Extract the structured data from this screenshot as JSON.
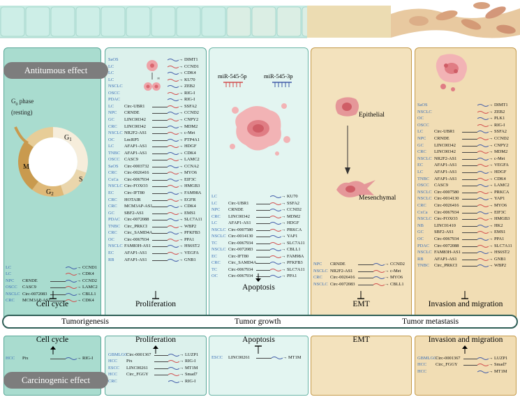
{
  "labels": {
    "antitumor": "Antitumous effect",
    "carcinogenic": "Carcinogenic effect"
  },
  "band": {
    "tumorigenesis": "Tumorigenesis",
    "growth": "Tumor growth",
    "metastasis": "Tumor metastasis"
  },
  "cell_cycle_diagram": {
    "g0_label": "G",
    "g0_sub": "0",
    "g0_rest": " phase",
    "g0_resting": "(resting)",
    "g1": "G",
    "g1_sub": "1",
    "s": "S",
    "g2": "G",
    "g2_sub": "2",
    "m": "M"
  },
  "emt_diagram": {
    "epithelial": "Epithelial",
    "mesenchymal": "Mesenchymal"
  },
  "apoptosis_diagram": {
    "mir1": "miR-545-5p",
    "mir2": "miR-545-3p"
  },
  "panel_titles": {
    "cell_cycle": "Cell cycle",
    "proliferation": "Proliferation",
    "apoptosis": "Apoptosis",
    "emt": "EMT",
    "invasion": "Invasion and migration"
  },
  "colors": {
    "panel1": "#a9dccf",
    "panel2": "#dcf1ec",
    "panel3": "#e3f5f1",
    "panel4": "#f3e2bd",
    "panel5": "#f1ddb4",
    "tumor_text": "#3b6fb6",
    "mir_red": "#d14b4b",
    "mir_blue": "#3f5aa8"
  },
  "anti_cell_cycle": [
    [
      "LC",
      "",
      "CCND1"
    ],
    [
      "LC",
      "",
      "CDK4"
    ],
    [
      "NPC",
      "CRNDE",
      "CCND2"
    ],
    [
      "OSCC",
      "CASC9",
      "LAMC2"
    ],
    [
      "NSCLC",
      "Circ-0072083",
      "CBLL1"
    ],
    [
      "CRC",
      "MCM3AP-AS1",
      "CDK4"
    ]
  ],
  "anti_proliferation": [
    [
      "SaOS",
      "",
      "DIMT1"
    ],
    [
      "LC",
      "",
      "CCND1"
    ],
    [
      "LC",
      "",
      "CDK4"
    ],
    [
      "LC",
      "",
      "KU70"
    ],
    [
      "NSCLC",
      "",
      "ZEB2"
    ],
    [
      "OSCC",
      "",
      "RIG-I"
    ],
    [
      "PDAC",
      "",
      "RIG-I"
    ],
    [
      "LC",
      "Circ-UBR1",
      "SSFA2"
    ],
    [
      "NPC",
      "CRNDE",
      "CCND2"
    ],
    [
      "GC",
      "LINC00342",
      "CNPY2"
    ],
    [
      "CRC",
      "LINC00342",
      "MDM2"
    ],
    [
      "NSCLC",
      "NR2F2-AS1",
      "c-Met"
    ],
    [
      "OC",
      "LncRP5",
      "PTP4A1"
    ],
    [
      "LC",
      "AFAP1-AS1",
      "HDGF"
    ],
    [
      "TNBC",
      "AFAP1-AS1",
      "CDK4"
    ],
    [
      "OSCC",
      "CASC9",
      "LAMC2"
    ],
    [
      "SaOS",
      "Circ-0003732",
      "CCNA2"
    ],
    [
      "CRC",
      "Circ-0026416",
      "MYO6"
    ],
    [
      "CxCa",
      "Circ-0067934",
      "EIF3C"
    ],
    [
      "NSCLC",
      "Circ-FOXO3",
      "HMGB3"
    ],
    [
      "EC",
      "Circ-IFT80",
      "FAM98A"
    ],
    [
      "CRC",
      "HOTAIR",
      "EGFR"
    ],
    [
      "CRC",
      "MCM3AP-AS1",
      "CDK4"
    ],
    [
      "GC",
      "SBF2-AS1",
      "EMS1"
    ],
    [
      "PDAC",
      "Circ-0072088",
      "SLC7A11"
    ],
    [
      "TNBC",
      "Circ_PRKCI",
      "WBP2"
    ],
    [
      "CRC",
      "Circ_SAMD4A",
      "PFKFB3"
    ],
    [
      "OC",
      "Circ-0067934",
      "PPA1"
    ],
    [
      "NSCLC",
      "FAM83H-AS1",
      "HS6ST2"
    ],
    [
      "EC",
      "AFAP1-AS1",
      "VEGFA"
    ],
    [
      "RB",
      "AFAP1-AS1",
      "GNB1"
    ]
  ],
  "anti_apoptosis": [
    [
      "LC",
      "",
      "KU70"
    ],
    [
      "LC",
      "Circ-UBR1",
      "SSFA2"
    ],
    [
      "NPC",
      "CRNDE",
      "CCND2"
    ],
    [
      "CRC",
      "LINC00342",
      "MDM2"
    ],
    [
      "LC",
      "AFAP1-AS1",
      "HDGF"
    ],
    [
      "NSCLC",
      "Circ-0007580",
      "PRKCA"
    ],
    [
      "NSCLC",
      "Circ-0014130",
      "YAP1"
    ],
    [
      "TC",
      "Circ-0067934",
      "SLC7A11"
    ],
    [
      "NSCLC",
      "Circ-0072083",
      "CBLL1"
    ],
    [
      "EC",
      "Circ-IFT80",
      "FAM98A"
    ],
    [
      "CRC",
      "Circ_SAMD4A",
      "PFKFB3"
    ],
    [
      "TC",
      "Circ-0067934",
      "SLC7A11"
    ],
    [
      "OC",
      "Circ-0067934",
      "PPA1"
    ]
  ],
  "anti_emt": [
    [
      "NPC",
      "CRNDE",
      "CCND2"
    ],
    [
      "NSCLC",
      "NR2F2-AS1",
      "c-Met"
    ],
    [
      "CRC",
      "Circ-0026416",
      "MYO6"
    ],
    [
      "NSCLC",
      "Circ-0072083",
      "CBLL1"
    ]
  ],
  "anti_invasion": [
    [
      "SaOS",
      "",
      "DIMT1"
    ],
    [
      "NSCLC",
      "",
      "ZEB2"
    ],
    [
      "OC",
      "",
      "PLK1"
    ],
    [
      "OSCC",
      "",
      "RIG-I"
    ],
    [
      "LC",
      "Circ-UBR1",
      "SSFA2"
    ],
    [
      "NPC",
      "CRNDE",
      "CCND2"
    ],
    [
      "GC",
      "LINC00342",
      "CNPY2"
    ],
    [
      "CRC",
      "LINC00342",
      "MDM2"
    ],
    [
      "NSCLC",
      "NR2F2-AS1",
      "c-Met"
    ],
    [
      "EC",
      "AFAP1-AS1",
      "VEGFA"
    ],
    [
      "LC",
      "AFAP1-AS1",
      "HDGF"
    ],
    [
      "TNBC",
      "AFAP1-AS1",
      "CDK4"
    ],
    [
      "OSCC",
      "CASC9",
      "LAMC2"
    ],
    [
      "NSCLC",
      "Circ-0007580",
      "PRKCA"
    ],
    [
      "NSCLC",
      "Circ-0014130",
      "YAP1"
    ],
    [
      "CRC",
      "Circ-0026416",
      "MYO6"
    ],
    [
      "CxCa",
      "Circ-0067934",
      "EIF3C"
    ],
    [
      "NSCLC",
      "Circ-FOXO3",
      "HMGB3"
    ],
    [
      "NB",
      "LINC01410",
      "HK2"
    ],
    [
      "GC",
      "SBF2-AS1",
      "EMS1"
    ],
    [
      "OC",
      "Circ-0067934",
      "PPA1"
    ],
    [
      "PDAC",
      "Circ-0072088",
      "SLC7A11"
    ],
    [
      "NSCLC",
      "FAM83H-AS1",
      "HS6ST2"
    ],
    [
      "RB",
      "AFAP1-AS1",
      "GNB1"
    ],
    [
      "TNBC",
      "Circ_PRKCI",
      "WBP2"
    ]
  ],
  "carc_cell_cycle": [
    [
      "HCC",
      "Ptx",
      "RIG-I"
    ]
  ],
  "carc_proliferation": [
    [
      "GBMLGG",
      "Circ-0001367",
      "LUZP1"
    ],
    [
      "HCC",
      "Ptx",
      "RIG-I"
    ],
    [
      "ESCC",
      "LINC00261",
      "MT1M"
    ],
    [
      "HCC",
      "Circ_FGGY",
      "Smad7"
    ],
    [
      "CRC",
      "",
      "RIG-I"
    ]
  ],
  "carc_apoptosis": [
    [
      "ESCC",
      "LINC00261",
      "MT1M"
    ]
  ],
  "carc_invasion": [
    [
      "GBMLGG",
      "Circ-0001367",
      "LUZP1"
    ],
    [
      "HCC",
      "Circ_FGGY",
      "Smad7"
    ],
    [
      "HCC",
      "",
      "MT1M"
    ]
  ]
}
